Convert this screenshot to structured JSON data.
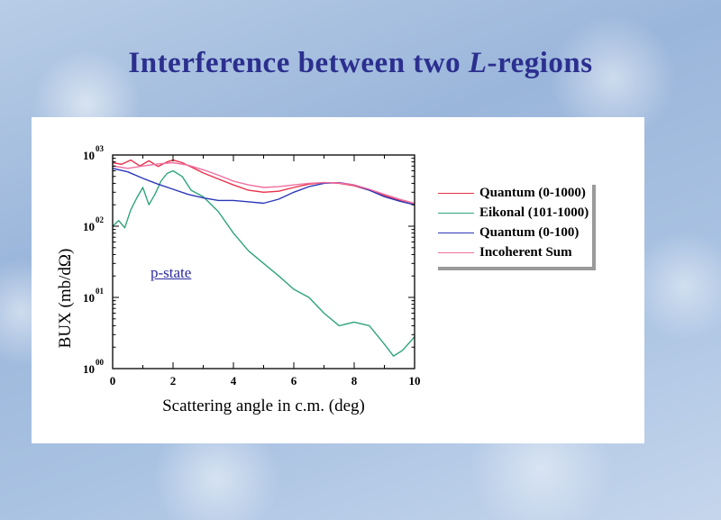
{
  "slide": {
    "title_main": "Interference between two ",
    "title_italic": "L",
    "title_tail": "-regions"
  },
  "chart_data": {
    "type": "line",
    "title": "",
    "xlabel": "Scattering angle in c.m. (deg)",
    "ylabel": "BUX (mb/dΩ)",
    "xlim": [
      0,
      10
    ],
    "ylim": [
      1,
      1000
    ],
    "yscale": "log",
    "xticks": [
      "0",
      "2",
      "4",
      "6",
      "8",
      "10"
    ],
    "yticks": [
      {
        "base": "10",
        "exp": "03"
      },
      {
        "base": "10",
        "exp": "02"
      },
      {
        "base": "10",
        "exp": "01"
      },
      {
        "base": "10",
        "exp": "00"
      }
    ],
    "grid": false,
    "legend_position": "right",
    "annotation": "p-state",
    "series": [
      {
        "name": "Quantum (0-1000)",
        "color": "#e8304a",
        "x": [
          0,
          0.3,
          0.6,
          0.9,
          1.2,
          1.5,
          1.8,
          2.0,
          2.3,
          2.6,
          3.0,
          3.5,
          4.0,
          4.5,
          5.0,
          5.5,
          6.0,
          6.5,
          7.0,
          7.5,
          8.0,
          8.5,
          9.0,
          9.5,
          10.0
        ],
        "y": [
          780,
          740,
          850,
          700,
          830,
          690,
          800,
          850,
          780,
          680,
          560,
          460,
          380,
          320,
          300,
          310,
          350,
          390,
          410,
          400,
          370,
          320,
          270,
          230,
          200
        ]
      },
      {
        "name": "Eikonal (101-1000)",
        "color": "#2ea47a",
        "x": [
          0,
          0.2,
          0.4,
          0.6,
          0.8,
          1.0,
          1.2,
          1.4,
          1.6,
          1.8,
          2.0,
          2.3,
          2.6,
          3.0,
          3.5,
          4.0,
          4.5,
          5.0,
          5.5,
          6.0,
          6.5,
          7.0,
          7.5,
          8.0,
          8.5,
          9.0,
          9.3,
          9.6,
          10.0
        ],
        "y": [
          100,
          120,
          95,
          170,
          250,
          350,
          200,
          280,
          430,
          550,
          600,
          500,
          320,
          260,
          160,
          80,
          45,
          30,
          20,
          13,
          10,
          6,
          4,
          4.5,
          4,
          2.2,
          1.5,
          1.8,
          2.8
        ]
      },
      {
        "name": "Quantum (0-100)",
        "color": "#2c38b8",
        "x": [
          0,
          0.5,
          1.0,
          1.5,
          2.0,
          2.5,
          3.0,
          3.5,
          4.0,
          4.5,
          5.0,
          5.5,
          6.0,
          6.5,
          7.0,
          7.5,
          8.0,
          8.5,
          9.0,
          9.5,
          10.0
        ],
        "y": [
          650,
          580,
          470,
          390,
          330,
          280,
          250,
          230,
          230,
          220,
          210,
          240,
          300,
          360,
          400,
          410,
          380,
          320,
          260,
          225,
          200
        ]
      },
      {
        "name": "Incoherent Sum",
        "color": "#f06fa0",
        "x": [
          0,
          0.5,
          1.0,
          1.5,
          2.0,
          2.5,
          3.0,
          3.5,
          4.0,
          4.5,
          5.0,
          5.5,
          6.0,
          6.5,
          7.0,
          7.5,
          8.0,
          8.5,
          9.0,
          9.5,
          10.0
        ],
        "y": [
          700,
          650,
          700,
          750,
          780,
          720,
          620,
          520,
          430,
          380,
          350,
          360,
          380,
          400,
          410,
          405,
          380,
          330,
          280,
          240,
          210
        ]
      }
    ]
  }
}
